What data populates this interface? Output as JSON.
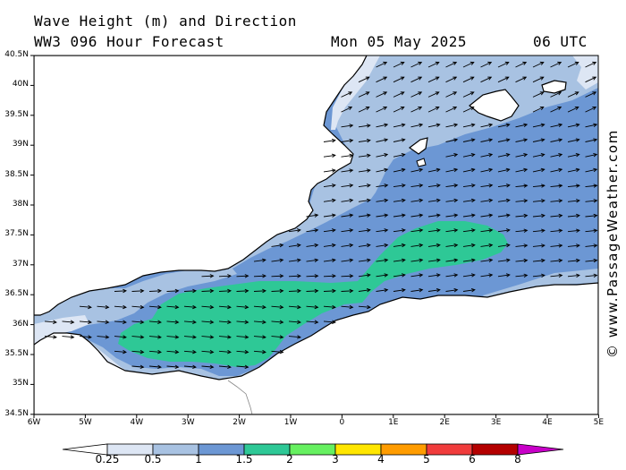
{
  "header": {
    "line1": "Wave Height (m) and Direction",
    "line2": "WW3 096 Hour Forecast",
    "date": "Mon 05 May 2025",
    "time": "06 UTC"
  },
  "credit": "© www.PassageWeather.com",
  "map": {
    "lat_labels": [
      "40.5N",
      "40N",
      "39.5N",
      "39N",
      "38.5N",
      "38N",
      "37.5N",
      "37N",
      "36.5N",
      "36N",
      "35.5N",
      "35N",
      "34.5N"
    ],
    "lon_labels": [
      "6W",
      "5W",
      "4W",
      "3W",
      "2W",
      "1W",
      "0",
      "1E",
      "2E",
      "3E",
      "4E",
      "5E"
    ],
    "colors": {
      "sea_025_05": "#dde6f4",
      "sea_05_1": "#a8c2e2",
      "sea_1_15": "#6c97d4",
      "sea_15_2": "#2ec896",
      "land": "#ffffff",
      "coast": "#000000"
    }
  },
  "colorbar": {
    "labels": [
      "0.25",
      "0.5",
      "1",
      "1.5",
      "2",
      "3",
      "4",
      "5",
      "6",
      "8"
    ],
    "colors": [
      "#ffffff",
      "#dde6f4",
      "#a8c2e2",
      "#6c97d4",
      "#2ec896",
      "#66f060",
      "#ffe600",
      "#ff9c00",
      "#f03c3c",
      "#b40000",
      "#c800c8"
    ]
  }
}
